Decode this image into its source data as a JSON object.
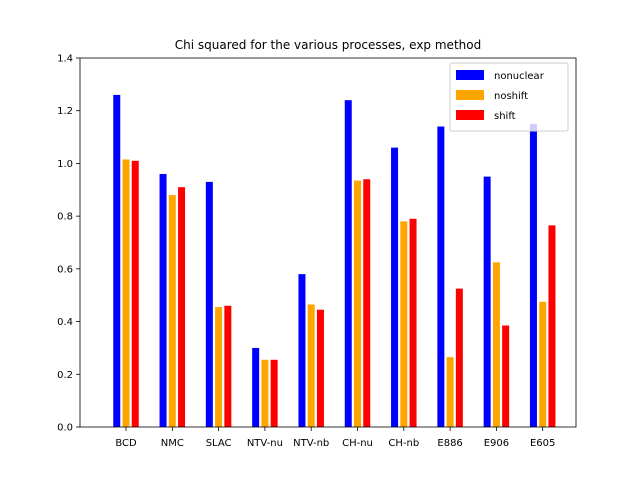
{
  "chart_data": {
    "type": "bar",
    "title": "Chi squared for the various processes, exp method",
    "xlabel": "",
    "ylabel": "",
    "ylim": [
      0,
      1.4
    ],
    "yticks": [
      0.0,
      0.2,
      0.4,
      0.6,
      0.8,
      1.0,
      1.2,
      1.4
    ],
    "ytick_labels": [
      "0.0",
      "0.2",
      "0.4",
      "0.6",
      "0.8",
      "1.0",
      "1.2",
      "1.4"
    ],
    "categories": [
      "BCD",
      "NMC",
      "SLAC",
      "NTV-nu",
      "NTV-nb",
      "CH-nu",
      "CH-nb",
      "E886",
      "E906",
      "E605"
    ],
    "series": [
      {
        "name": "nonuclear",
        "color": "#0000ff",
        "values": [
          1.26,
          0.96,
          0.93,
          0.3,
          0.58,
          1.24,
          1.06,
          1.14,
          0.95,
          1.15
        ]
      },
      {
        "name": "noshift",
        "color": "#ffa500",
        "values": [
          1.015,
          0.88,
          0.455,
          0.255,
          0.465,
          0.935,
          0.78,
          0.265,
          0.625,
          0.475
        ]
      },
      {
        "name": "shift",
        "color": "#ff0000",
        "values": [
          1.01,
          0.91,
          0.46,
          0.255,
          0.445,
          0.94,
          0.79,
          0.525,
          0.385,
          0.765
        ]
      }
    ],
    "grid": false,
    "legend_position": "top-right"
  }
}
